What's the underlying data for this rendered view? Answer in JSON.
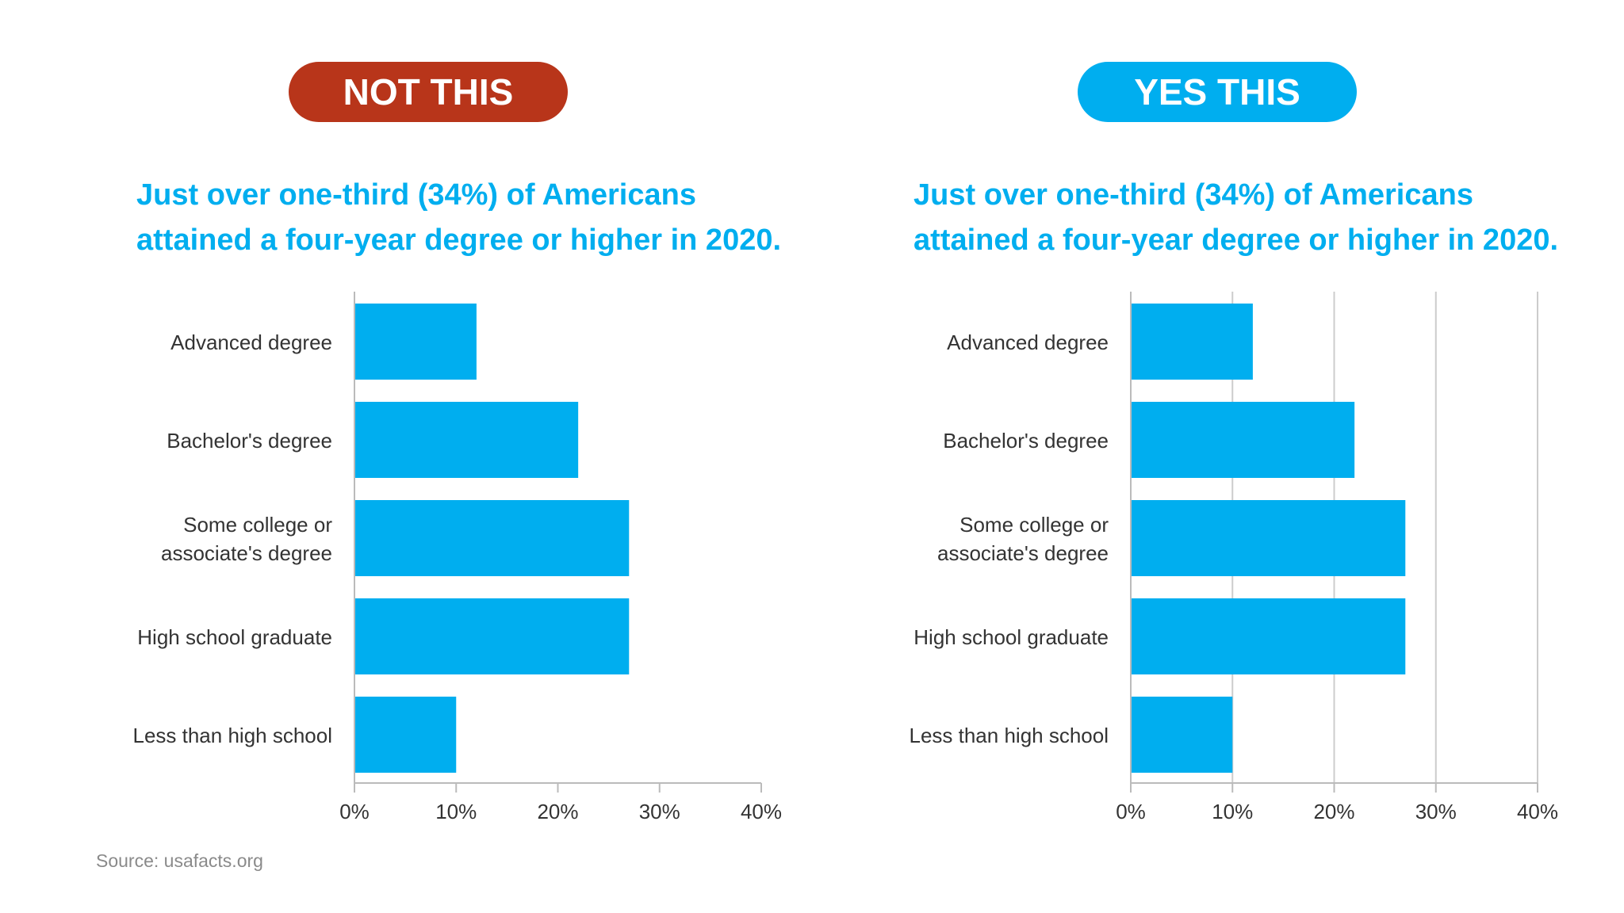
{
  "colors": {
    "not_pill": "#B8351A",
    "yes_pill": "#00AEEF",
    "headline": "#00AEEF",
    "bar": "#00AEEF",
    "axis": "#BBBBBB",
    "grid": "#CCCCCC",
    "label": "#333333"
  },
  "left_panel": {
    "pill_label": "NOT THIS",
    "headline_line1": "Just over one-third (34%) of Americans",
    "headline_line2": "attained a four-year degree or higher in 2020."
  },
  "right_panel": {
    "pill_label": "YES THIS",
    "headline_line1": "Just over one-third (34%) of Americans",
    "headline_line2": "attained a four-year degree or higher in 2020."
  },
  "source": "Source: usafacts.org",
  "chart_data": [
    {
      "type": "bar",
      "orientation": "horizontal",
      "categories": [
        [
          "Advanced degree"
        ],
        [
          "Bachelor's degree"
        ],
        [
          "Some college or",
          "associate's degree"
        ],
        [
          "High school graduate"
        ],
        [
          "Less than high school"
        ]
      ],
      "values": [
        12,
        22,
        27,
        27,
        10
      ],
      "xlim": [
        0,
        40
      ],
      "xticks": [
        "0%",
        "10%",
        "20%",
        "30%",
        "40%"
      ],
      "grid": false
    },
    {
      "type": "bar",
      "orientation": "horizontal",
      "categories": [
        [
          "Advanced degree"
        ],
        [
          "Bachelor's degree"
        ],
        [
          "Some college or",
          "associate's degree"
        ],
        [
          "High school graduate"
        ],
        [
          "Less than high school"
        ]
      ],
      "values": [
        12,
        22,
        27,
        27,
        10
      ],
      "xlim": [
        0,
        40
      ],
      "xticks": [
        "0%",
        "10%",
        "20%",
        "30%",
        "40%"
      ],
      "grid": true
    }
  ]
}
